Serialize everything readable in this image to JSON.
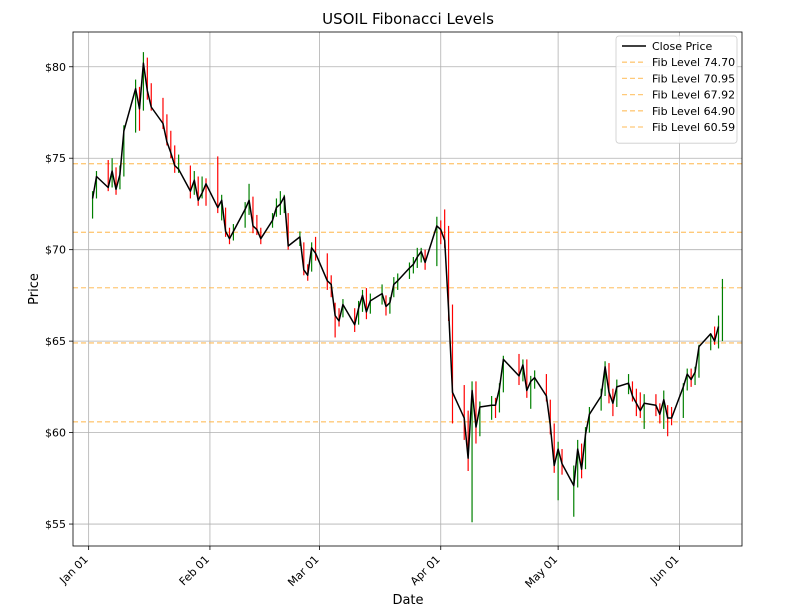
{
  "chart_data": {
    "type": "line",
    "title": "USOIL Fibonacci Levels",
    "xlabel": "Date",
    "ylabel": "Price",
    "x_range": [
      "2024-12-28",
      "2025-06-17"
    ],
    "y_range": [
      53.8,
      81.9
    ],
    "grid": true,
    "legend_position": "top-right",
    "x_ticks": [
      {
        "date": "2025-01-01",
        "label": "Jan 01"
      },
      {
        "date": "2025-02-01",
        "label": "Feb 01"
      },
      {
        "date": "2025-03-01",
        "label": "Mar 01"
      },
      {
        "date": "2025-04-01",
        "label": "Apr 01"
      },
      {
        "date": "2025-05-01",
        "label": "May 01"
      },
      {
        "date": "2025-06-01",
        "label": "Jun 01"
      }
    ],
    "y_ticks": [
      {
        "value": 55,
        "label": "$55"
      },
      {
        "value": 60,
        "label": "$60"
      },
      {
        "value": 65,
        "label": "$65"
      },
      {
        "value": 70,
        "label": "$70"
      },
      {
        "value": 75,
        "label": "$75"
      },
      {
        "value": 80,
        "label": "$80"
      }
    ],
    "colors": {
      "close": "#000000",
      "fib": "#ffb84d",
      "up": "#008000",
      "down": "#ff0000",
      "grid": "#b0b0b0"
    },
    "close_series": {
      "name": "Close Price",
      "points": [
        [
          "2025-01-02",
          72.8
        ],
        [
          "2025-01-03",
          74.0
        ],
        [
          "2025-01-06",
          73.4
        ],
        [
          "2025-01-07",
          74.3
        ],
        [
          "2025-01-08",
          73.3
        ],
        [
          "2025-01-09",
          74.1
        ],
        [
          "2025-01-10",
          76.5
        ],
        [
          "2025-01-13",
          78.8
        ],
        [
          "2025-01-14",
          77.7
        ],
        [
          "2025-01-15",
          80.2
        ],
        [
          "2025-01-16",
          78.7
        ],
        [
          "2025-01-17",
          77.8
        ],
        [
          "2025-01-20",
          76.9
        ],
        [
          "2025-01-21",
          75.9
        ],
        [
          "2025-01-22",
          75.3
        ],
        [
          "2025-01-23",
          74.6
        ],
        [
          "2025-01-24",
          74.4
        ],
        [
          "2025-01-27",
          73.2
        ],
        [
          "2025-01-28",
          73.8
        ],
        [
          "2025-01-29",
          72.7
        ],
        [
          "2025-01-30",
          73.1
        ],
        [
          "2025-01-31",
          73.6
        ],
        [
          "2025-02-03",
          72.3
        ],
        [
          "2025-02-04",
          72.7
        ],
        [
          "2025-02-05",
          71.0
        ],
        [
          "2025-02-06",
          70.6
        ],
        [
          "2025-02-07",
          71.0
        ],
        [
          "2025-02-10",
          72.2
        ],
        [
          "2025-02-11",
          72.7
        ],
        [
          "2025-02-12",
          71.3
        ],
        [
          "2025-02-13",
          71.1
        ],
        [
          "2025-02-14",
          70.6
        ],
        [
          "2025-02-17",
          71.6
        ],
        [
          "2025-02-18",
          72.3
        ],
        [
          "2025-02-19",
          72.5
        ],
        [
          "2025-02-20",
          72.9
        ],
        [
          "2025-02-21",
          70.2
        ],
        [
          "2025-02-24",
          70.7
        ],
        [
          "2025-02-25",
          68.9
        ],
        [
          "2025-02-26",
          68.6
        ],
        [
          "2025-02-27",
          70.1
        ],
        [
          "2025-02-28",
          69.8
        ],
        [
          "2025-03-03",
          68.3
        ],
        [
          "2025-03-04",
          68.1
        ],
        [
          "2025-03-05",
          66.4
        ],
        [
          "2025-03-06",
          66.1
        ],
        [
          "2025-03-07",
          67.0
        ],
        [
          "2025-03-10",
          65.9
        ],
        [
          "2025-03-11",
          66.8
        ],
        [
          "2025-03-12",
          67.5
        ],
        [
          "2025-03-13",
          66.6
        ],
        [
          "2025-03-14",
          67.2
        ],
        [
          "2025-03-17",
          67.6
        ],
        [
          "2025-03-18",
          66.9
        ],
        [
          "2025-03-19",
          67.1
        ],
        [
          "2025-03-20",
          68.1
        ],
        [
          "2025-03-21",
          68.3
        ],
        [
          "2025-03-24",
          69.0
        ],
        [
          "2025-03-25",
          69.2
        ],
        [
          "2025-03-26",
          69.6
        ],
        [
          "2025-03-27",
          69.9
        ],
        [
          "2025-03-28",
          69.3
        ],
        [
          "2025-03-31",
          71.3
        ],
        [
          "2025-04-01",
          71.1
        ],
        [
          "2025-04-02",
          70.5
        ],
        [
          "2025-04-03",
          66.7
        ],
        [
          "2025-04-04",
          62.2
        ],
        [
          "2025-04-07",
          60.8
        ],
        [
          "2025-04-08",
          58.6
        ],
        [
          "2025-04-09",
          62.3
        ],
        [
          "2025-04-10",
          60.3
        ],
        [
          "2025-04-11",
          61.4
        ],
        [
          "2025-04-14",
          61.5
        ],
        [
          "2025-04-15",
          61.5
        ],
        [
          "2025-04-16",
          62.4
        ],
        [
          "2025-04-17",
          64.0
        ],
        [
          "2025-04-21",
          63.1
        ],
        [
          "2025-04-22",
          63.7
        ],
        [
          "2025-04-23",
          62.3
        ],
        [
          "2025-04-24",
          62.8
        ],
        [
          "2025-04-25",
          63.0
        ],
        [
          "2025-04-28",
          62.0
        ],
        [
          "2025-04-29",
          60.4
        ],
        [
          "2025-04-30",
          58.2
        ],
        [
          "2025-05-01",
          59.1
        ],
        [
          "2025-05-02",
          58.3
        ],
        [
          "2025-05-05",
          57.1
        ],
        [
          "2025-05-06",
          59.1
        ],
        [
          "2025-05-07",
          58.0
        ],
        [
          "2025-05-08",
          59.9
        ],
        [
          "2025-05-09",
          61.0
        ],
        [
          "2025-05-12",
          62.0
        ],
        [
          "2025-05-13",
          63.6
        ],
        [
          "2025-05-14",
          62.2
        ],
        [
          "2025-05-15",
          61.6
        ],
        [
          "2025-05-16",
          62.5
        ],
        [
          "2025-05-19",
          62.7
        ],
        [
          "2025-05-20",
          62.0
        ],
        [
          "2025-05-21",
          61.6
        ],
        [
          "2025-05-22",
          61.2
        ],
        [
          "2025-05-23",
          61.6
        ],
        [
          "2025-05-26",
          61.5
        ],
        [
          "2025-05-27",
          61.0
        ],
        [
          "2025-05-28",
          61.8
        ],
        [
          "2025-05-29",
          60.8
        ],
        [
          "2025-05-30",
          60.8
        ],
        [
          "2025-06-02",
          62.5
        ],
        [
          "2025-06-03",
          63.2
        ],
        [
          "2025-06-04",
          62.9
        ],
        [
          "2025-06-05",
          63.3
        ],
        [
          "2025-06-06",
          64.7
        ],
        [
          "2025-06-09",
          65.4
        ],
        [
          "2025-06-10",
          65.0
        ],
        [
          "2025-06-11",
          65.8
        ]
      ]
    },
    "spikes": [
      [
        "2025-01-02",
        71.7,
        73.2,
        "up"
      ],
      [
        "2025-01-03",
        72.8,
        74.3,
        "up"
      ],
      [
        "2025-01-06",
        73.2,
        74.9,
        "down"
      ],
      [
        "2025-01-07",
        73.4,
        75.0,
        "up"
      ],
      [
        "2025-01-08",
        73.0,
        74.5,
        "down"
      ],
      [
        "2025-01-09",
        73.3,
        74.6,
        "up"
      ],
      [
        "2025-01-10",
        74.0,
        76.8,
        "up"
      ],
      [
        "2025-01-13",
        76.4,
        79.3,
        "up"
      ],
      [
        "2025-01-14",
        76.5,
        78.9,
        "down"
      ],
      [
        "2025-01-15",
        77.6,
        80.8,
        "up"
      ],
      [
        "2025-01-16",
        78.2,
        80.5,
        "down"
      ],
      [
        "2025-01-17",
        77.6,
        79.1,
        "down"
      ],
      [
        "2025-01-20",
        76.6,
        78.3,
        "down"
      ],
      [
        "2025-01-21",
        75.7,
        77.4,
        "down"
      ],
      [
        "2025-01-22",
        75.0,
        76.5,
        "down"
      ],
      [
        "2025-01-23",
        74.2,
        75.7,
        "down"
      ],
      [
        "2025-01-24",
        74.2,
        75.2,
        "up"
      ],
      [
        "2025-01-27",
        72.8,
        74.6,
        "down"
      ],
      [
        "2025-01-28",
        73.0,
        74.3,
        "up"
      ],
      [
        "2025-01-29",
        72.4,
        74.0,
        "down"
      ],
      [
        "2025-01-30",
        72.8,
        74.0,
        "up"
      ],
      [
        "2025-01-31",
        72.4,
        73.9,
        "down"
      ],
      [
        "2025-02-03",
        72.0,
        75.1,
        "down"
      ],
      [
        "2025-02-04",
        71.6,
        73.0,
        "up"
      ],
      [
        "2025-02-05",
        70.7,
        72.3,
        "down"
      ],
      [
        "2025-02-06",
        70.3,
        71.2,
        "down"
      ],
      [
        "2025-02-07",
        70.5,
        71.4,
        "up"
      ],
      [
        "2025-02-10",
        71.2,
        72.6,
        "up"
      ],
      [
        "2025-02-11",
        71.9,
        73.6,
        "up"
      ],
      [
        "2025-02-12",
        70.9,
        72.9,
        "down"
      ],
      [
        "2025-02-13",
        70.8,
        71.9,
        "down"
      ],
      [
        "2025-02-14",
        70.3,
        71.2,
        "down"
      ],
      [
        "2025-02-17",
        71.2,
        72.0,
        "up"
      ],
      [
        "2025-02-18",
        71.8,
        72.8,
        "up"
      ],
      [
        "2025-02-19",
        71.9,
        73.2,
        "up"
      ],
      [
        "2025-02-20",
        72.0,
        73.0,
        "up"
      ],
      [
        "2025-02-21",
        70.0,
        72.0,
        "down"
      ],
      [
        "2025-02-24",
        70.2,
        71.0,
        "up"
      ],
      [
        "2025-02-25",
        68.6,
        70.4,
        "down"
      ],
      [
        "2025-02-26",
        68.3,
        69.2,
        "down"
      ],
      [
        "2025-02-27",
        68.8,
        70.4,
        "up"
      ],
      [
        "2025-02-28",
        69.4,
        70.7,
        "down"
      ],
      [
        "2025-03-03",
        67.8,
        69.8,
        "down"
      ],
      [
        "2025-03-04",
        67.4,
        68.6,
        "down"
      ],
      [
        "2025-03-05",
        65.2,
        67.1,
        "down"
      ],
      [
        "2025-03-06",
        65.8,
        66.8,
        "down"
      ],
      [
        "2025-03-07",
        66.3,
        67.3,
        "up"
      ],
      [
        "2025-03-10",
        65.5,
        66.8,
        "down"
      ],
      [
        "2025-03-11",
        65.9,
        67.2,
        "up"
      ],
      [
        "2025-03-12",
        66.6,
        67.8,
        "up"
      ],
      [
        "2025-03-13",
        66.2,
        67.9,
        "down"
      ],
      [
        "2025-03-14",
        66.5,
        67.6,
        "up"
      ],
      [
        "2025-03-17",
        67.0,
        68.1,
        "up"
      ],
      [
        "2025-03-18",
        66.4,
        67.5,
        "down"
      ],
      [
        "2025-03-19",
        66.5,
        67.4,
        "up"
      ],
      [
        "2025-03-20",
        67.4,
        68.5,
        "up"
      ],
      [
        "2025-03-21",
        67.8,
        68.7,
        "up"
      ],
      [
        "2025-03-24",
        68.4,
        69.3,
        "up"
      ],
      [
        "2025-03-25",
        68.7,
        69.6,
        "up"
      ],
      [
        "2025-03-26",
        69.0,
        70.1,
        "up"
      ],
      [
        "2025-03-27",
        69.3,
        70.1,
        "up"
      ],
      [
        "2025-03-28",
        68.9,
        70.0,
        "down"
      ],
      [
        "2025-03-31",
        69.1,
        71.8,
        "up"
      ],
      [
        "2025-04-01",
        70.3,
        71.6,
        "down"
      ],
      [
        "2025-04-02",
        70.1,
        72.2,
        "down"
      ],
      [
        "2025-04-03",
        66.1,
        71.3,
        "down"
      ],
      [
        "2025-04-04",
        60.5,
        67.0,
        "down"
      ],
      [
        "2025-04-07",
        59.6,
        62.6,
        "down"
      ],
      [
        "2025-04-08",
        57.9,
        61.2,
        "down"
      ],
      [
        "2025-04-09",
        55.1,
        62.8,
        "up"
      ],
      [
        "2025-04-10",
        59.4,
        62.8,
        "down"
      ],
      [
        "2025-04-11",
        59.8,
        61.7,
        "up"
      ],
      [
        "2025-04-14",
        60.7,
        62.0,
        "up"
      ],
      [
        "2025-04-15",
        60.8,
        61.9,
        "down"
      ],
      [
        "2025-04-16",
        61.1,
        62.7,
        "up"
      ],
      [
        "2025-04-17",
        62.2,
        64.2,
        "up"
      ],
      [
        "2025-04-21",
        62.6,
        64.3,
        "down"
      ],
      [
        "2025-04-22",
        62.8,
        64.0,
        "up"
      ],
      [
        "2025-04-23",
        61.9,
        64.0,
        "down"
      ],
      [
        "2025-04-24",
        61.3,
        63.1,
        "up"
      ],
      [
        "2025-04-25",
        62.4,
        63.4,
        "up"
      ],
      [
        "2025-04-28",
        61.7,
        63.2,
        "down"
      ],
      [
        "2025-04-29",
        59.9,
        61.8,
        "down"
      ],
      [
        "2025-04-30",
        57.8,
        60.5,
        "down"
      ],
      [
        "2025-05-01",
        56.3,
        59.5,
        "up"
      ],
      [
        "2025-05-02",
        57.7,
        59.1,
        "down"
      ],
      [
        "2025-05-05",
        55.4,
        58.2,
        "up"
      ],
      [
        "2025-05-06",
        57.0,
        59.6,
        "up"
      ],
      [
        "2025-05-07",
        57.5,
        59.4,
        "down"
      ],
      [
        "2025-05-08",
        58.0,
        60.3,
        "up"
      ],
      [
        "2025-05-09",
        60.0,
        61.4,
        "up"
      ],
      [
        "2025-05-12",
        61.2,
        62.4,
        "up"
      ],
      [
        "2025-05-13",
        62.0,
        63.9,
        "up"
      ],
      [
        "2025-05-14",
        61.6,
        63.8,
        "down"
      ],
      [
        "2025-05-15",
        60.9,
        62.4,
        "down"
      ],
      [
        "2025-05-16",
        61.4,
        62.9,
        "up"
      ],
      [
        "2025-05-19",
        62.1,
        63.2,
        "up"
      ],
      [
        "2025-05-20",
        61.7,
        62.8,
        "down"
      ],
      [
        "2025-05-21",
        60.9,
        62.4,
        "down"
      ],
      [
        "2025-05-22",
        60.8,
        62.2,
        "down"
      ],
      [
        "2025-05-23",
        60.2,
        62.1,
        "up"
      ],
      [
        "2025-05-26",
        60.9,
        62.1,
        "down"
      ],
      [
        "2025-05-27",
        60.5,
        61.6,
        "down"
      ],
      [
        "2025-05-28",
        60.2,
        62.3,
        "up"
      ],
      [
        "2025-05-29",
        59.8,
        61.5,
        "down"
      ],
      [
        "2025-05-30",
        60.4,
        61.4,
        "down"
      ],
      [
        "2025-06-02",
        60.8,
        62.7,
        "up"
      ],
      [
        "2025-06-03",
        62.3,
        63.5,
        "up"
      ],
      [
        "2025-06-04",
        62.5,
        63.5,
        "down"
      ],
      [
        "2025-06-05",
        62.6,
        63.6,
        "up"
      ],
      [
        "2025-06-06",
        63.0,
        64.8,
        "up"
      ],
      [
        "2025-06-09",
        64.5,
        65.4,
        "up"
      ],
      [
        "2025-06-10",
        64.8,
        65.8,
        "down"
      ],
      [
        "2025-06-11",
        64.6,
        66.4,
        "up"
      ],
      [
        "2025-06-12",
        65.0,
        68.4,
        "up"
      ]
    ],
    "fib_levels": [
      {
        "name": "Fib Level 74.70",
        "value": 74.7
      },
      {
        "name": "Fib Level 70.95",
        "value": 70.95
      },
      {
        "name": "Fib Level 67.92",
        "value": 67.92
      },
      {
        "name": "Fib Level 64.90",
        "value": 64.9
      },
      {
        "name": "Fib Level 60.59",
        "value": 60.59
      }
    ]
  }
}
